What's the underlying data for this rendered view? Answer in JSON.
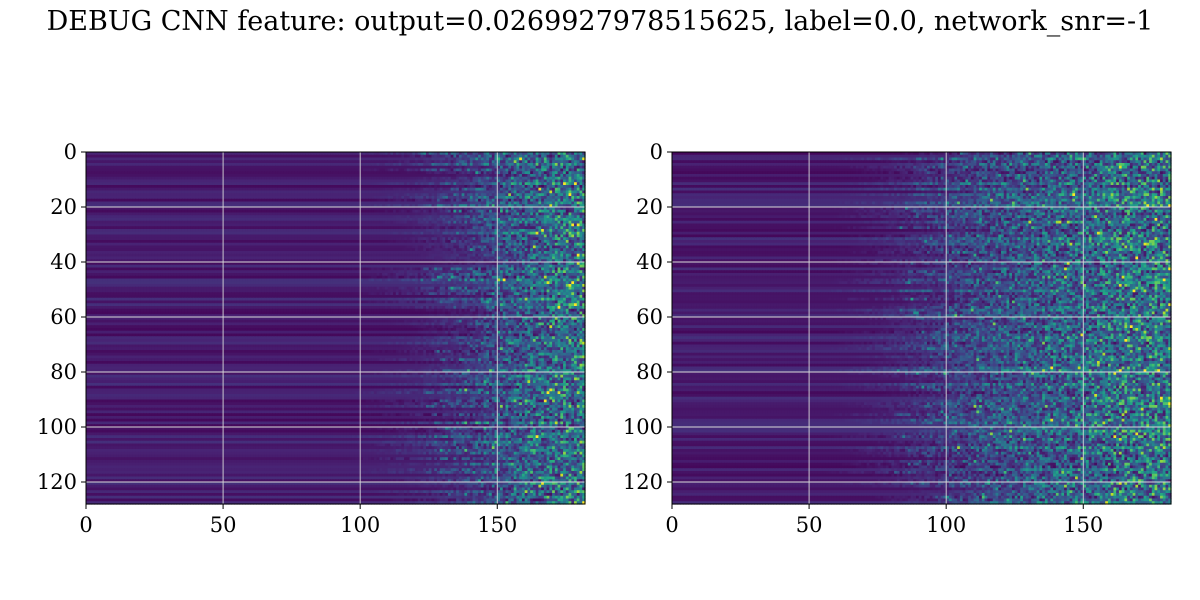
{
  "title": "DEBUG CNN feature: output=0.0269927978515625, label=0.0, network_snr=-1",
  "colors": {
    "colormap": "viridis",
    "background": "#ffffff",
    "grid": "#d9d9d9"
  },
  "chart_data": [
    {
      "type": "heatmap",
      "colormap": "viridis",
      "xlim": [
        0,
        182
      ],
      "ylim": [
        128,
        0
      ],
      "x_ticks": [
        0,
        50,
        100,
        150
      ],
      "y_ticks": [
        0,
        20,
        40,
        60,
        80,
        100,
        120
      ],
      "x_tick_labels": [
        "0",
        "50",
        "100",
        "150"
      ],
      "y_tick_labels": [
        "0",
        "20",
        "40",
        "60",
        "80",
        "100",
        "120"
      ],
      "grid": true,
      "rows": 128,
      "cols": 182,
      "activity_onset_x": 135
    },
    {
      "type": "heatmap",
      "colormap": "viridis",
      "xlim": [
        0,
        182
      ],
      "ylim": [
        128,
        0
      ],
      "x_ticks": [
        0,
        50,
        100,
        150
      ],
      "y_ticks": [
        0,
        20,
        40,
        60,
        80,
        100,
        120
      ],
      "x_tick_labels": [
        "0",
        "50",
        "100",
        "150"
      ],
      "y_tick_labels": [
        "0",
        "20",
        "40",
        "60",
        "80",
        "100",
        "120"
      ],
      "grid": true,
      "rows": 128,
      "cols": 182,
      "activity_onset_x": 95
    }
  ]
}
